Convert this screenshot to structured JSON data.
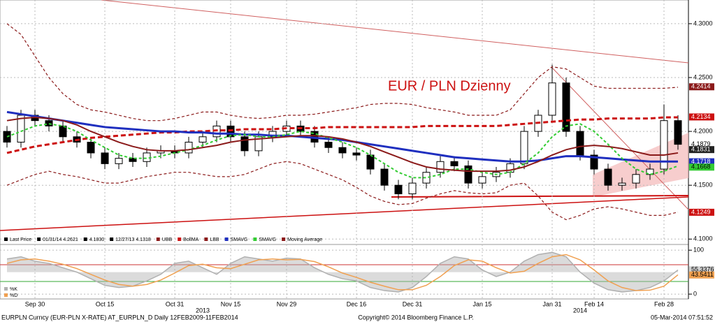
{
  "chart_data": [
    {
      "type": "candlestick",
      "title": "EUR / PLN Dzienny",
      "categories": [
        null,
        null,
        "Sep 30",
        null,
        null,
        null,
        null,
        "Oct 15",
        null,
        null,
        null,
        null,
        "Oct 31",
        null,
        null,
        null,
        "Nov 15",
        null,
        null,
        null,
        "Nov 29",
        null,
        null,
        null,
        null,
        "Dec 16",
        null,
        null,
        null,
        "Dec 31",
        null,
        null,
        null,
        null,
        "Jan 15",
        null,
        null,
        null,
        null,
        "Jan 31",
        null,
        null,
        "Feb 14",
        null,
        null,
        null,
        null,
        "Feb 28",
        null
      ],
      "years": [
        {
          "label": "2013",
          "category": 12
        },
        {
          "label": "2014",
          "category": 39
        }
      ],
      "open": [
        4.2,
        4.19,
        4.215,
        4.21,
        4.205,
        4.195,
        4.19,
        4.18,
        4.17,
        4.175,
        4.172,
        4.18,
        4.182,
        4.18,
        4.19,
        4.195,
        4.205,
        4.195,
        4.182,
        4.195,
        4.2,
        4.205,
        4.2,
        4.19,
        4.185,
        4.18,
        4.178,
        4.165,
        4.15,
        4.142,
        4.152,
        4.162,
        4.172,
        4.168,
        4.152,
        4.158,
        4.162,
        4.17,
        4.2,
        4.215,
        4.245,
        4.2,
        4.178,
        4.165,
        4.15,
        4.152,
        4.16,
        4.165,
        4.21
      ],
      "high": [
        4.205,
        4.22,
        4.22,
        4.215,
        4.21,
        4.2,
        4.195,
        4.185,
        4.18,
        4.18,
        4.185,
        4.187,
        4.187,
        4.195,
        4.2,
        4.21,
        4.21,
        4.2,
        4.2,
        4.205,
        4.21,
        4.21,
        4.205,
        4.195,
        4.19,
        4.185,
        4.183,
        4.17,
        4.155,
        4.157,
        4.167,
        4.177,
        4.177,
        4.173,
        4.163,
        4.167,
        4.175,
        4.205,
        4.22,
        4.262,
        4.25,
        4.205,
        4.183,
        4.17,
        4.157,
        4.165,
        4.17,
        4.225,
        4.215
      ],
      "low": [
        4.185,
        4.185,
        4.205,
        4.2,
        4.19,
        4.185,
        4.175,
        4.165,
        4.165,
        4.167,
        4.167,
        4.175,
        4.175,
        4.175,
        4.185,
        4.19,
        4.19,
        4.177,
        4.177,
        4.19,
        4.195,
        4.195,
        4.185,
        4.18,
        4.175,
        4.173,
        4.16,
        4.145,
        4.137,
        4.137,
        4.147,
        4.157,
        4.163,
        4.147,
        4.147,
        4.153,
        4.157,
        4.165,
        4.195,
        4.21,
        4.195,
        4.173,
        4.16,
        4.145,
        4.145,
        4.147,
        4.155,
        4.16,
        4.183
      ],
      "close": [
        4.19,
        4.215,
        4.21,
        4.205,
        4.195,
        4.19,
        4.18,
        4.17,
        4.175,
        4.172,
        4.18,
        4.182,
        4.18,
        4.19,
        4.195,
        4.205,
        4.195,
        4.182,
        4.195,
        4.2,
        4.205,
        4.2,
        4.19,
        4.185,
        4.18,
        4.178,
        4.165,
        4.15,
        4.142,
        4.152,
        4.162,
        4.172,
        4.168,
        4.152,
        4.158,
        4.162,
        4.17,
        4.2,
        4.215,
        4.245,
        4.2,
        4.178,
        4.165,
        4.15,
        4.152,
        4.16,
        4.165,
        4.21,
        4.188
      ],
      "last_price_legend": [
        "Last Price",
        "01/31/14 4.2621",
        "4.1830",
        "12/27/13 4.1318"
      ],
      "series": [
        {
          "name": "UBB",
          "color": "#8b1a1a",
          "dash": "4,3",
          "width": 1.2,
          "values": [
            4.3,
            4.29,
            4.27,
            4.25,
            4.235,
            4.225,
            4.22,
            4.218,
            4.215,
            4.212,
            4.21,
            4.21,
            4.212,
            4.215,
            4.218,
            4.218,
            4.215,
            4.213,
            4.212,
            4.213,
            4.215,
            4.215,
            4.216,
            4.218,
            4.22,
            4.222,
            4.225,
            4.226,
            4.226,
            4.225,
            4.222,
            4.22,
            4.218,
            4.215,
            4.215,
            4.215,
            4.22,
            4.235,
            4.25,
            4.26,
            4.258,
            4.25,
            4.242,
            4.24,
            4.24,
            4.24,
            4.24,
            4.24,
            4.241
          ]
        },
        {
          "name": "BollMA",
          "color": "#cc1111",
          "dash": "7,4",
          "width": 3,
          "values": [
            4.18,
            4.183,
            4.186,
            4.188,
            4.19,
            4.192,
            4.194,
            4.195,
            4.196,
            4.197,
            4.198,
            4.199,
            4.199,
            4.2,
            4.2,
            4.201,
            4.201,
            4.202,
            4.202,
            4.202,
            4.203,
            4.203,
            4.203,
            4.204,
            4.204,
            4.204,
            4.204,
            4.204,
            4.204,
            4.204,
            4.205,
            4.205,
            4.205,
            4.205,
            4.205,
            4.205,
            4.206,
            4.207,
            4.208,
            4.209,
            4.21,
            4.211,
            4.211,
            4.212,
            4.212,
            4.212,
            4.212,
            4.213,
            4.213
          ]
        },
        {
          "name": "LBB",
          "color": "#8b1a1a",
          "dash": "4,3",
          "width": 1.2,
          "values": [
            4.15,
            4.155,
            4.16,
            4.163,
            4.16,
            4.158,
            4.155,
            4.152,
            4.152,
            4.155,
            4.158,
            4.16,
            4.162,
            4.162,
            4.16,
            4.158,
            4.158,
            4.16,
            4.165,
            4.17,
            4.172,
            4.17,
            4.165,
            4.16,
            4.155,
            4.148,
            4.14,
            4.135,
            4.132,
            4.133,
            4.138,
            4.142,
            4.145,
            4.143,
            4.142,
            4.143,
            4.15,
            4.152,
            4.14,
            4.125,
            4.118,
            4.122,
            4.128,
            4.13,
            4.128,
            4.125,
            4.122,
            4.122,
            4.125
          ]
        },
        {
          "name": "SMAVG",
          "color": "#1f2fbf",
          "dash": "",
          "width": 3,
          "values": [
            4.218,
            4.216,
            4.214,
            4.212,
            4.21,
            4.208,
            4.206,
            4.204,
            4.203,
            4.202,
            4.201,
            4.2,
            4.2,
            4.199,
            4.199,
            4.198,
            4.198,
            4.197,
            4.197,
            4.196,
            4.196,
            4.195,
            4.194,
            4.193,
            4.192,
            4.19,
            4.188,
            4.186,
            4.184,
            4.182,
            4.18,
            4.178,
            4.176,
            4.175,
            4.174,
            4.173,
            4.172,
            4.172,
            4.173,
            4.175,
            4.177,
            4.177,
            4.176,
            4.175,
            4.174,
            4.173,
            4.172,
            4.172,
            4.172
          ]
        },
        {
          "name": "SMAVG",
          "color": "#33cc33",
          "dash": "4,3",
          "width": 2,
          "values": [
            4.195,
            4.2,
            4.205,
            4.207,
            4.205,
            4.2,
            4.192,
            4.185,
            4.178,
            4.175,
            4.175,
            4.177,
            4.18,
            4.183,
            4.187,
            4.192,
            4.196,
            4.197,
            4.195,
            4.195,
            4.197,
            4.2,
            4.198,
            4.194,
            4.19,
            4.185,
            4.178,
            4.17,
            4.162,
            4.157,
            4.157,
            4.16,
            4.165,
            4.165,
            4.162,
            4.16,
            4.162,
            4.17,
            4.18,
            4.195,
            4.205,
            4.207,
            4.2,
            4.188,
            4.175,
            4.165,
            4.16,
            4.163,
            4.168
          ]
        },
        {
          "name": "Moving Average",
          "color": "#8b1a1a",
          "dash": "",
          "width": 2,
          "values": [
            4.21,
            4.212,
            4.213,
            4.212,
            4.21,
            4.206,
            4.2,
            4.195,
            4.19,
            4.186,
            4.183,
            4.182,
            4.182,
            4.183,
            4.185,
            4.187,
            4.19,
            4.192,
            4.193,
            4.194,
            4.195,
            4.196,
            4.196,
            4.195,
            4.193,
            4.19,
            4.186,
            4.181,
            4.176,
            4.171,
            4.167,
            4.165,
            4.164,
            4.163,
            4.163,
            4.163,
            4.164,
            4.167,
            4.172,
            4.178,
            4.183,
            4.186,
            4.187,
            4.186,
            4.184,
            4.181,
            4.178,
            4.178,
            4.18
          ]
        }
      ],
      "price_labels": [
        {
          "value": 4.2414,
          "bg": "#8b1a1a",
          "fg": "#ffffff"
        },
        {
          "value": 4.2134,
          "bg": "#cc1111",
          "fg": "#ffffff"
        },
        {
          "value": 4.1879,
          "bg": "#ffffff",
          "fg": "#000000"
        },
        {
          "value": 4.1831,
          "bg": "#222222",
          "fg": "#ffffff"
        },
        {
          "value": 4.1718,
          "bg": "#1f2fbf",
          "fg": "#ffffff"
        },
        {
          "value": 4.1668,
          "bg": "#33cc33",
          "fg": "#000000"
        },
        {
          "value": 4.1249,
          "bg": "#cc1111",
          "fg": "#ffffff"
        }
      ],
      "ylim": [
        4.095,
        4.322
      ],
      "yticks": [
        {
          "value": 4.3,
          "label": "4.3000"
        },
        {
          "value": 4.25,
          "label": "4.2500"
        },
        {
          "value": 4.2,
          "label": "4.2000"
        },
        {
          "value": 4.15,
          "label": "4.1500"
        },
        {
          "value": 4.1,
          "label": "4.1000"
        }
      ],
      "grid": true
    },
    {
      "type": "line",
      "series": [
        {
          "name": "%K",
          "color": "#b0b0b0",
          "values": [
            80,
            85,
            75,
            70,
            60,
            50,
            35,
            20,
            15,
            18,
            30,
            45,
            70,
            75,
            60,
            45,
            70,
            85,
            80,
            75,
            82,
            80,
            60,
            45,
            35,
            30,
            15,
            8,
            5,
            15,
            40,
            70,
            85,
            80,
            55,
            40,
            50,
            75,
            90,
            95,
            85,
            50,
            25,
            10,
            5,
            8,
            15,
            30,
            55
          ]
        },
        {
          "name": "%D",
          "color": "#f0a050",
          "values": [
            70,
            78,
            80,
            75,
            68,
            58,
            45,
            32,
            22,
            18,
            22,
            32,
            48,
            65,
            68,
            60,
            58,
            68,
            78,
            80,
            78,
            79,
            74,
            62,
            48,
            38,
            27,
            18,
            10,
            10,
            20,
            40,
            65,
            78,
            75,
            60,
            48,
            52,
            70,
            85,
            90,
            78,
            55,
            30,
            15,
            8,
            9,
            18,
            44
          ]
        }
      ],
      "value_labels": [
        {
          "value": 55.3376,
          "bg": "#d0d0d0"
        },
        {
          "value": 43.5411,
          "bg": "#f0a050"
        }
      ],
      "ylim": [
        -11,
        113
      ],
      "yticks": [
        100,
        0
      ],
      "grid": true
    }
  ],
  "footer": {
    "left": "EURPLN Curncy (EUR-PLN X-RATE) AT_EURPLN_D  Daily 12FEB2009-11FEB2014",
    "center": "Copyright© 2014 Bloomberg Finance L.P.",
    "right": "05-Mar-2014 07:51:52"
  }
}
